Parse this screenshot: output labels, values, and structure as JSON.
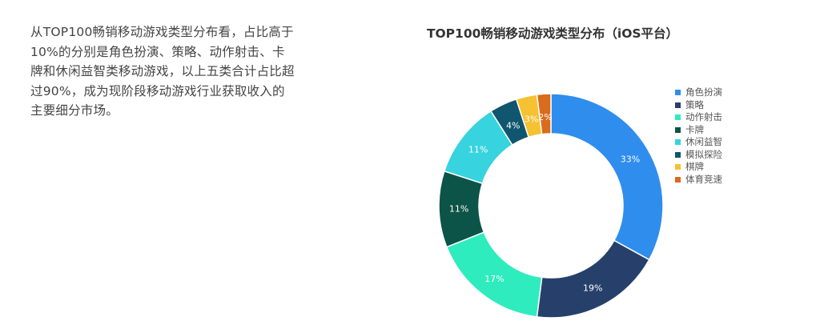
{
  "description": "从TOP100畅销移动游戏类型分布看，占比高于10%的分别是角色扮演、策略、动作射击、卡牌和休闲益智类移动游戏，以上五类合计占比超过90%，成为现阶段移动游戏行业获取收入的主要细分市场。",
  "chart_data": {
    "type": "pie",
    "title": "TOP100畅销移动游戏类型分布（iOS平台）",
    "categories": [
      "角色扮演",
      "策略",
      "动作射击",
      "卡牌",
      "休闲益智",
      "模拟探险",
      "棋牌",
      "体育竞速"
    ],
    "values": [
      33,
      19,
      17,
      11,
      11,
      4,
      3,
      2
    ],
    "labels": [
      "33%",
      "19%",
      "17%",
      "11%",
      "11%",
      "4%",
      "3%",
      "2%"
    ],
    "colors": [
      "#2f8ded",
      "#27406b",
      "#2fecbe",
      "#0c5448",
      "#37d3df",
      "#0f566e",
      "#f6c232",
      "#d96b1c"
    ],
    "legend": "right"
  }
}
